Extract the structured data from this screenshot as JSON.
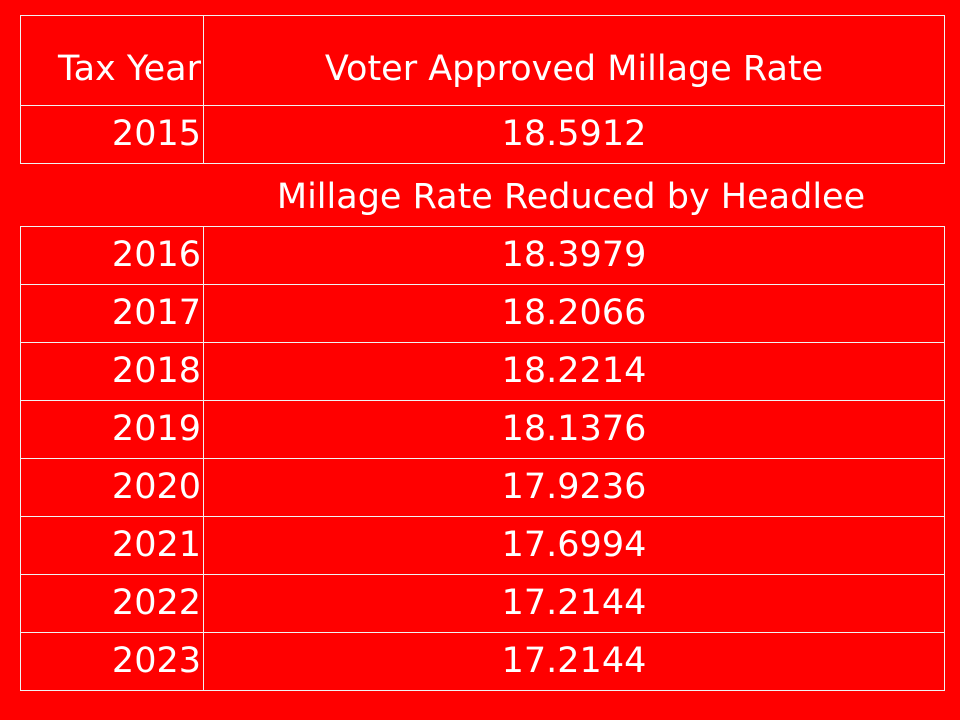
{
  "top_table": {
    "header": {
      "year": "Tax Year",
      "rate": "Voter Approved Millage Rate"
    },
    "rows": [
      {
        "year": "2015",
        "rate": "18.5912"
      }
    ]
  },
  "section_label": "Millage Rate Reduced by Headlee",
  "bottom_table": {
    "rows": [
      {
        "year": "2016",
        "rate": "18.3979"
      },
      {
        "year": "2017",
        "rate": "18.2066"
      },
      {
        "year": "2018",
        "rate": "18.2214"
      },
      {
        "year": "2019",
        "rate": "18.1376"
      },
      {
        "year": "2020",
        "rate": "17.9236"
      },
      {
        "year": "2021",
        "rate": "17.6994"
      },
      {
        "year": "2022",
        "rate": "17.2144"
      },
      {
        "year": "2023",
        "rate": "17.2144"
      }
    ]
  },
  "colors": {
    "background": "#ff0000",
    "text": "#ffffff",
    "border": "#f2f2f2"
  }
}
